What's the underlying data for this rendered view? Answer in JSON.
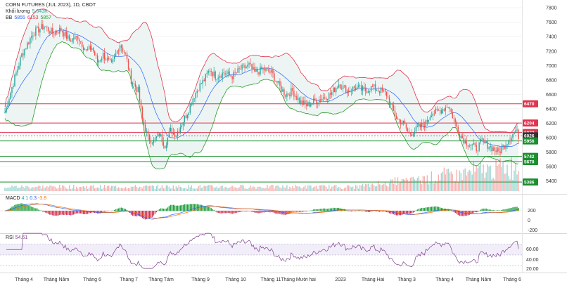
{
  "header": {
    "symbol": "CORN FUTURES (JUL 2023), 1D, CBOT",
    "volume_label": "Khối lượng",
    "volume_value": "5.643K",
    "bb_label": "BB",
    "bb_values": [
      "5855",
      "6153",
      "5857"
    ]
  },
  "macd": {
    "label": "MACD",
    "values": [
      "4.1",
      "0.3",
      "-3.8"
    ]
  },
  "rsi": {
    "label": "RSI",
    "value": "54.61"
  },
  "colors": {
    "up": "#26a69a",
    "down": "#ef5350",
    "bb_upper": "#e0354f",
    "bb_lower": "#2a9d2a",
    "bb_mid": "#2962ff",
    "level_red": "#e0354f",
    "level_green": "#1b8f2f",
    "rsi_line": "#7e3f8f",
    "macd_line": "#2962ff",
    "signal_line": "#ff6d00"
  },
  "chart_data": {
    "type": "candlestick",
    "title": "CORN FUTURES (JUL 2023), 1D, CBOT",
    "price_axis_ticks": [
      "7800",
      "7600",
      "7400",
      "7200",
      "7000",
      "6800",
      "6600",
      "6400",
      "6200",
      "6000",
      "5800",
      "5600",
      "5400"
    ],
    "price_range": [
      5300,
      7850
    ],
    "x_ticks": [
      "Tháng 4",
      "Tháng Năm",
      "Tháng 6",
      "Tháng 7",
      "Tháng Tám",
      "Tháng 9",
      "Tháng 10",
      "Tháng 11",
      "Tháng Mười hai",
      "2023",
      "Tháng Hai",
      "Tháng 3",
      "Tháng 4",
      "Tháng Năm",
      "Tháng 6"
    ],
    "levels": [
      {
        "value": 6470,
        "label": "6470",
        "color": "red"
      },
      {
        "value": 6204,
        "label": "6204",
        "color": "red"
      },
      {
        "value": 6072,
        "label": "6072",
        "color": "red"
      },
      {
        "value": 6026,
        "label": "6026",
        "color": "black"
      },
      {
        "value": 5956,
        "label": "5956",
        "color": "green"
      },
      {
        "value": 5742,
        "label": "5742",
        "color": "green"
      },
      {
        "value": 5670,
        "label": "5670",
        "color": "green"
      },
      {
        "value": 5386,
        "label": "5386",
        "color": "green"
      }
    ],
    "price_path": [
      [
        0,
        6350
      ],
      [
        5,
        6700
      ],
      [
        12,
        7150
      ],
      [
        20,
        7450
      ],
      [
        28,
        7550
      ],
      [
        34,
        7450
      ],
      [
        40,
        7500
      ],
      [
        46,
        7350
      ],
      [
        52,
        7400
      ],
      [
        58,
        7200
      ],
      [
        62,
        7250
      ],
      [
        66,
        7050
      ],
      [
        70,
        7150
      ],
      [
        76,
        7000
      ],
      [
        82,
        7300
      ],
      [
        86,
        7150
      ],
      [
        90,
        6800
      ],
      [
        95,
        6650
      ],
      [
        98,
        6250
      ],
      [
        102,
        6000
      ],
      [
        106,
        5950
      ],
      [
        110,
        6050
      ],
      [
        114,
        5900
      ],
      [
        118,
        6100
      ],
      [
        122,
        6050
      ],
      [
        126,
        6200
      ],
      [
        130,
        6350
      ],
      [
        134,
        6550
      ],
      [
        138,
        6700
      ],
      [
        142,
        6800
      ],
      [
        146,
        6950
      ],
      [
        150,
        6850
      ],
      [
        156,
        6900
      ],
      [
        162,
        6850
      ],
      [
        168,
        6950
      ],
      [
        174,
        7000
      ],
      [
        178,
        6900
      ],
      [
        184,
        6950
      ],
      [
        190,
        6900
      ],
      [
        196,
        6700
      ],
      [
        200,
        6600
      ],
      [
        205,
        6650
      ],
      [
        210,
        6500
      ],
      [
        215,
        6450
      ],
      [
        220,
        6500
      ],
      [
        226,
        6550
      ],
      [
        232,
        6600
      ],
      [
        238,
        6750
      ],
      [
        244,
        6650
      ],
      [
        250,
        6700
      ],
      [
        256,
        6650
      ],
      [
        262,
        6700
      ],
      [
        268,
        6650
      ],
      [
        272,
        6600
      ],
      [
        276,
        6400
      ],
      [
        280,
        6250
      ],
      [
        284,
        6200
      ],
      [
        288,
        6050
      ],
      [
        292,
        6100
      ],
      [
        296,
        6150
      ],
      [
        300,
        6200
      ],
      [
        304,
        6350
      ],
      [
        308,
        6350
      ],
      [
        312,
        6400
      ],
      [
        316,
        6450
      ],
      [
        320,
        6250
      ],
      [
        324,
        6050
      ],
      [
        328,
        5950
      ],
      [
        332,
        5900
      ],
      [
        336,
        5850
      ],
      [
        340,
        5950
      ],
      [
        344,
        5900
      ],
      [
        348,
        5850
      ],
      [
        352,
        5800
      ],
      [
        356,
        5900
      ],
      [
        360,
        6000
      ],
      [
        364,
        6100
      ],
      [
        366,
        6026
      ]
    ],
    "volume_scale_note": "",
    "rsi_levels": [
      60,
      40,
      20
    ]
  }
}
